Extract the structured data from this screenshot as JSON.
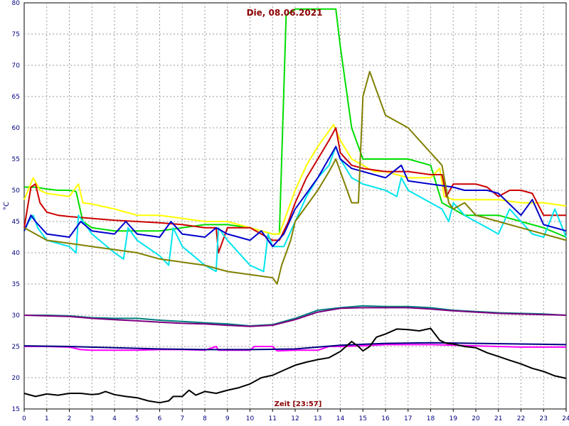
{
  "chart_data": {
    "type": "line",
    "title": "Die, 08.06.2021",
    "xlabel": "Zeit [23:57]",
    "ylabel": "°C",
    "xlim": [
      0,
      24
    ],
    "ylim": [
      15,
      80
    ],
    "xticks": [
      "0",
      "1",
      "2",
      "3",
      "4",
      "5",
      "6",
      "7",
      "8",
      "9",
      "10",
      "11",
      "12",
      "13",
      "14",
      "15",
      "16",
      "17",
      "18",
      "19",
      "20",
      "21",
      "22",
      "23",
      "24"
    ],
    "yticks": [
      "15",
      "20",
      "25",
      "30",
      "35",
      "40",
      "45",
      "50",
      "55",
      "60",
      "65",
      "70",
      "75",
      "80"
    ],
    "grid": true,
    "series": [
      {
        "color": "#00dd00",
        "x": [
          0,
          0.5,
          1,
          1.5,
          2,
          2.3,
          2.6,
          3,
          4,
          5,
          6,
          7,
          8,
          9,
          10,
          11,
          11.3,
          11.6,
          12,
          12.5,
          13,
          13.2,
          13.8,
          14,
          14.5,
          15,
          16,
          17,
          18,
          18.5,
          19,
          19.5,
          20,
          21,
          22,
          23,
          24
        ],
        "y": [
          50.5,
          50.5,
          50.2,
          50,
          50,
          49.8,
          45,
          44,
          43.5,
          43.5,
          43.5,
          44,
          44.5,
          44.5,
          44,
          43,
          43,
          78,
          79,
          79,
          79,
          79,
          79,
          73,
          60,
          55,
          55,
          55,
          54,
          48,
          47,
          46,
          46,
          46,
          45,
          44,
          42.5
        ]
      },
      {
        "color": "#ffff00",
        "x": [
          0,
          0.4,
          0.7,
          1,
          2,
          2.4,
          2.6,
          3,
          4,
          5,
          6,
          7,
          8,
          9,
          10,
          11,
          11.3,
          11.7,
          12,
          12.5,
          13,
          13.5,
          13.7,
          14,
          14.5,
          15,
          15.5,
          16,
          16.5,
          17,
          18,
          18.4,
          18.6,
          19,
          20,
          21,
          22,
          23,
          24
        ],
        "y": [
          48.5,
          52,
          50,
          49.5,
          49,
          51,
          48,
          47.8,
          47,
          46,
          46,
          45.5,
          45,
          45,
          44,
          43,
          43,
          47,
          50,
          54,
          57,
          59.5,
          60.5,
          58,
          55,
          54,
          53,
          53,
          52.5,
          52,
          52,
          53.5,
          49,
          48.5,
          48.5,
          48.5,
          48,
          48,
          47.5
        ]
      },
      {
        "color": "#cc0000",
        "x": [
          0,
          0.3,
          0.5,
          0.7,
          1,
          1.5,
          2,
          3,
          4,
          5,
          6,
          7,
          8,
          8.5,
          8.6,
          9,
          10,
          11,
          11.3,
          11.7,
          12,
          12.5,
          13,
          13.5,
          13.8,
          14,
          14.5,
          15,
          16,
          17,
          18,
          18.5,
          18.7,
          19,
          19.5,
          20,
          20.5,
          21,
          21.5,
          22,
          22.5,
          23,
          24
        ],
        "y": [
          44,
          50.5,
          51,
          48,
          46.5,
          46,
          45.8,
          45.5,
          45.2,
          45,
          44.8,
          44.5,
          44,
          44,
          40,
          44,
          44,
          42,
          42,
          45,
          48,
          52,
          55,
          58,
          60,
          56,
          54,
          53.5,
          53,
          53,
          52.5,
          52.5,
          49,
          51,
          51,
          51,
          50.5,
          49,
          50,
          50,
          49.5,
          46,
          46
        ]
      },
      {
        "color": "#00e5ee",
        "x": [
          0,
          0.2,
          0.4,
          0.6,
          1,
          2,
          2.3,
          2.4,
          3,
          4,
          4.4,
          4.6,
          5,
          6,
          6.4,
          6.6,
          7,
          8,
          8.5,
          8.6,
          9,
          10,
          10.6,
          10.8,
          11,
          11.5,
          12,
          12.5,
          13,
          13.5,
          13.8,
          14,
          14.5,
          15,
          16,
          16.5,
          16.7,
          17,
          18,
          18.5,
          18.8,
          19,
          19.5,
          20,
          20.5,
          21,
          21.5,
          22,
          22.5,
          23,
          23.5,
          24
        ],
        "y": [
          43.5,
          45,
          46,
          44,
          42,
          41,
          40,
          46,
          43,
          40,
          39,
          44,
          42,
          39.5,
          38,
          44,
          41,
          38,
          37,
          44,
          42,
          38,
          37,
          43,
          41,
          41,
          45,
          49,
          52,
          54,
          57,
          55,
          52,
          51,
          50,
          49,
          52,
          50,
          48,
          47,
          45,
          48,
          46,
          45,
          44,
          43,
          47,
          45,
          43,
          42.5,
          47,
          42.5
        ]
      },
      {
        "color": "#0000cc",
        "x": [
          0,
          0.3,
          0.5,
          1,
          2,
          2.5,
          3,
          4,
          4.5,
          5,
          6,
          6.5,
          7,
          8,
          8.5,
          9,
          10,
          10.5,
          11,
          11.5,
          12,
          13,
          13.8,
          14,
          14.5,
          15,
          16,
          16.7,
          17,
          18,
          19,
          19.5,
          20,
          20.5,
          21,
          22,
          22.5,
          23,
          24
        ],
        "y": [
          43.5,
          46,
          45,
          43,
          42.5,
          45,
          43.5,
          43,
          45,
          43,
          42.5,
          45,
          43,
          42.5,
          44,
          43,
          42,
          43.5,
          41,
          43,
          47,
          52,
          57,
          55,
          53.5,
          53,
          52,
          54,
          51.5,
          51,
          50.5,
          50,
          50,
          50,
          49.5,
          46,
          48.5,
          44.5,
          43.5
        ]
      },
      {
        "color": "#808000",
        "x": [
          0,
          1,
          2,
          3,
          4,
          5,
          6,
          7,
          8,
          9,
          10,
          11,
          11.2,
          11.4,
          11.8,
          12,
          13,
          13.5,
          13.8,
          14.5,
          14.8,
          15,
          15.3,
          15.5,
          16,
          17,
          18,
          18.5,
          18.8,
          19,
          19.5,
          20,
          21,
          22,
          23,
          24
        ],
        "y": [
          44,
          42,
          41.5,
          41,
          40.5,
          40,
          39,
          38.5,
          38,
          37,
          36.5,
          36,
          35,
          38,
          42,
          45,
          50,
          53,
          55,
          48,
          48,
          65,
          69,
          67,
          62,
          60,
          56,
          54,
          48,
          47,
          48,
          46,
          45,
          44,
          43,
          42
        ]
      },
      {
        "color": "#008080",
        "x": [
          0,
          1,
          2,
          3,
          4,
          5,
          6,
          7,
          8,
          9,
          10,
          11,
          12,
          13,
          14,
          15,
          16,
          17,
          18,
          19,
          20,
          21,
          22,
          23,
          24
        ],
        "y": [
          30,
          30,
          29.9,
          29.6,
          29.5,
          29.5,
          29.2,
          29,
          28.8,
          28.6,
          28.3,
          28.5,
          29.5,
          30.8,
          31.2,
          31.5,
          31.4,
          31.4,
          31.2,
          30.8,
          30.6,
          30.4,
          30.3,
          30.2,
          30
        ]
      },
      {
        "color": "#800080",
        "x": [
          0,
          1,
          2,
          3,
          4,
          5,
          6,
          7,
          8,
          9,
          10,
          11,
          12,
          13,
          14,
          15,
          16,
          17,
          18,
          19,
          20,
          21,
          22,
          23,
          24
        ],
        "y": [
          30,
          29.9,
          29.8,
          29.5,
          29.3,
          29.1,
          28.9,
          28.7,
          28.6,
          28.4,
          28.2,
          28.4,
          29.3,
          30.5,
          31.1,
          31.2,
          31.2,
          31.2,
          31,
          30.7,
          30.5,
          30.3,
          30.2,
          30.1,
          30
        ]
      },
      {
        "color": "#ff00ff",
        "x": [
          0,
          1,
          2,
          2.5,
          3,
          4,
          5,
          6,
          7,
          8,
          8.5,
          8.6,
          9,
          10,
          10.2,
          11,
          11.2,
          12,
          13,
          13.5,
          14,
          15,
          16,
          17,
          18,
          19,
          20,
          21,
          22,
          23,
          24
        ],
        "y": [
          25,
          25,
          24.9,
          24.5,
          24.4,
          24.4,
          24.4,
          24.5,
          24.5,
          24.4,
          25,
          24.4,
          24.4,
          24.4,
          25,
          25,
          24.3,
          24.4,
          24.4,
          25,
          25,
          25.1,
          25.3,
          25.3,
          25.3,
          25.2,
          25.1,
          25,
          24.9,
          24.9,
          24.9
        ]
      },
      {
        "color": "#000080",
        "x": [
          0,
          2,
          4,
          6,
          8,
          10,
          12,
          14,
          16,
          18,
          20,
          22,
          24
        ],
        "y": [
          25.1,
          25,
          24.8,
          24.6,
          24.5,
          24.5,
          24.6,
          25.2,
          25.5,
          25.6,
          25.5,
          25.4,
          25.3
        ]
      },
      {
        "color": "#000000",
        "x": [
          0,
          0.5,
          1,
          1.5,
          2,
          2.5,
          3,
          3.3,
          3.6,
          4,
          4.5,
          5,
          5.5,
          6,
          6.4,
          6.6,
          7,
          7.3,
          7.6,
          8,
          8.5,
          9,
          9.5,
          10,
          10.5,
          11,
          11.5,
          12,
          12.5,
          13,
          13.5,
          14,
          14.5,
          14.8,
          15,
          15.3,
          15.6,
          16,
          16.5,
          17,
          17.5,
          18,
          18.4,
          18.7,
          19,
          19.5,
          20,
          20.5,
          21,
          21.5,
          22,
          22.5,
          23,
          23.5,
          24
        ],
        "y": [
          17.5,
          17,
          17.4,
          17.2,
          17.5,
          17.5,
          17.3,
          17.4,
          17.8,
          17.3,
          17,
          16.8,
          16.3,
          16,
          16.3,
          17,
          17,
          18,
          17.2,
          17.8,
          17.5,
          18,
          18.4,
          19,
          20,
          20.4,
          21.2,
          22,
          22.5,
          22.9,
          23.2,
          24.2,
          25.8,
          25,
          24.3,
          25,
          26.5,
          27,
          27.8,
          27.7,
          27.5,
          27.9,
          26,
          25.5,
          25.4,
          25,
          24.8,
          24,
          23.4,
          22.8,
          22.2,
          21.5,
          21,
          20.3,
          19.9
        ]
      }
    ]
  }
}
